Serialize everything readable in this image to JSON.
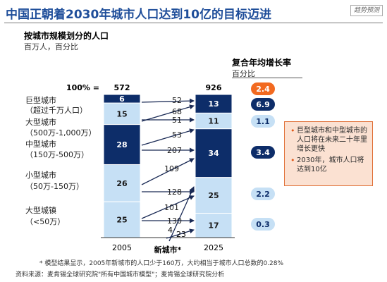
{
  "header": {
    "title": "中国正朝着2030年城市人口达到10亿的目标迈进",
    "watermark": "趋势预测"
  },
  "chart_data": {
    "type": "bar",
    "title": "按城市规模划分的人口",
    "units_label": "百万人，百分比",
    "total_prefix": "100% =",
    "x": [
      "2005",
      "2025"
    ],
    "totals": [
      572,
      926
    ],
    "categories": [
      {
        "label": [
          "巨型城市",
          "（超过千万人口）"
        ]
      },
      {
        "label": [
          "大型城市",
          "（500万-1,000万）"
        ]
      },
      {
        "label": [
          "中型城市",
          "（150万-500万）"
        ]
      },
      {
        "label": [
          "小型城市",
          "（50万-150万）"
        ]
      },
      {
        "label": [
          "大型城镇",
          "（<50万）"
        ]
      }
    ],
    "series": [
      {
        "values": [
          6,
          13
        ],
        "colors": [
          "#0d2d69",
          "#0d2d69"
        ]
      },
      {
        "values": [
          15,
          11
        ],
        "colors": [
          "#c6e0f5",
          "#c6e0f5"
        ]
      },
      {
        "values": [
          28,
          34
        ],
        "colors": [
          "#0d2d69",
          "#0d2d69"
        ]
      },
      {
        "values": [
          26,
          25
        ],
        "colors": [
          "#c6e0f5",
          "#c6e0f5"
        ]
      },
      {
        "values": [
          25,
          17
        ],
        "colors": [
          "#c6e0f5",
          "#c6e0f5"
        ]
      }
    ],
    "flows": [
      "52",
      "68",
      "51",
      "53",
      "207",
      "109",
      "128",
      "101",
      "130",
      "4",
      "23"
    ],
    "new_cities_label": "新城市*",
    "cagr": {
      "title": "复合年均增长率",
      "units": "百分比",
      "values": [
        "2.4",
        "6.9",
        "1.1",
        "3.4",
        "2.2",
        "0.3"
      ],
      "styles": [
        "orange",
        "navy",
        "light",
        "navy",
        "light",
        "light"
      ]
    },
    "colors": {
      "navy": "#0d2d69",
      "light": "#c6e0f5",
      "orange": "#f26a20",
      "arrow": "#1a2a55"
    }
  },
  "notes": [
    "巨型城市和中型城市的人口将在未来二十年里增长更快",
    "2030年，城市人口将达到10亿"
  ],
  "footnote": "* 模型结果显示，2005年新城市的人口少于160万，大约相当于城市人口总数的0.28%",
  "source": "资料来源：麦肯锡全球研究院\"所有中国城市模型\"；麦肯锡全球研究院分析"
}
